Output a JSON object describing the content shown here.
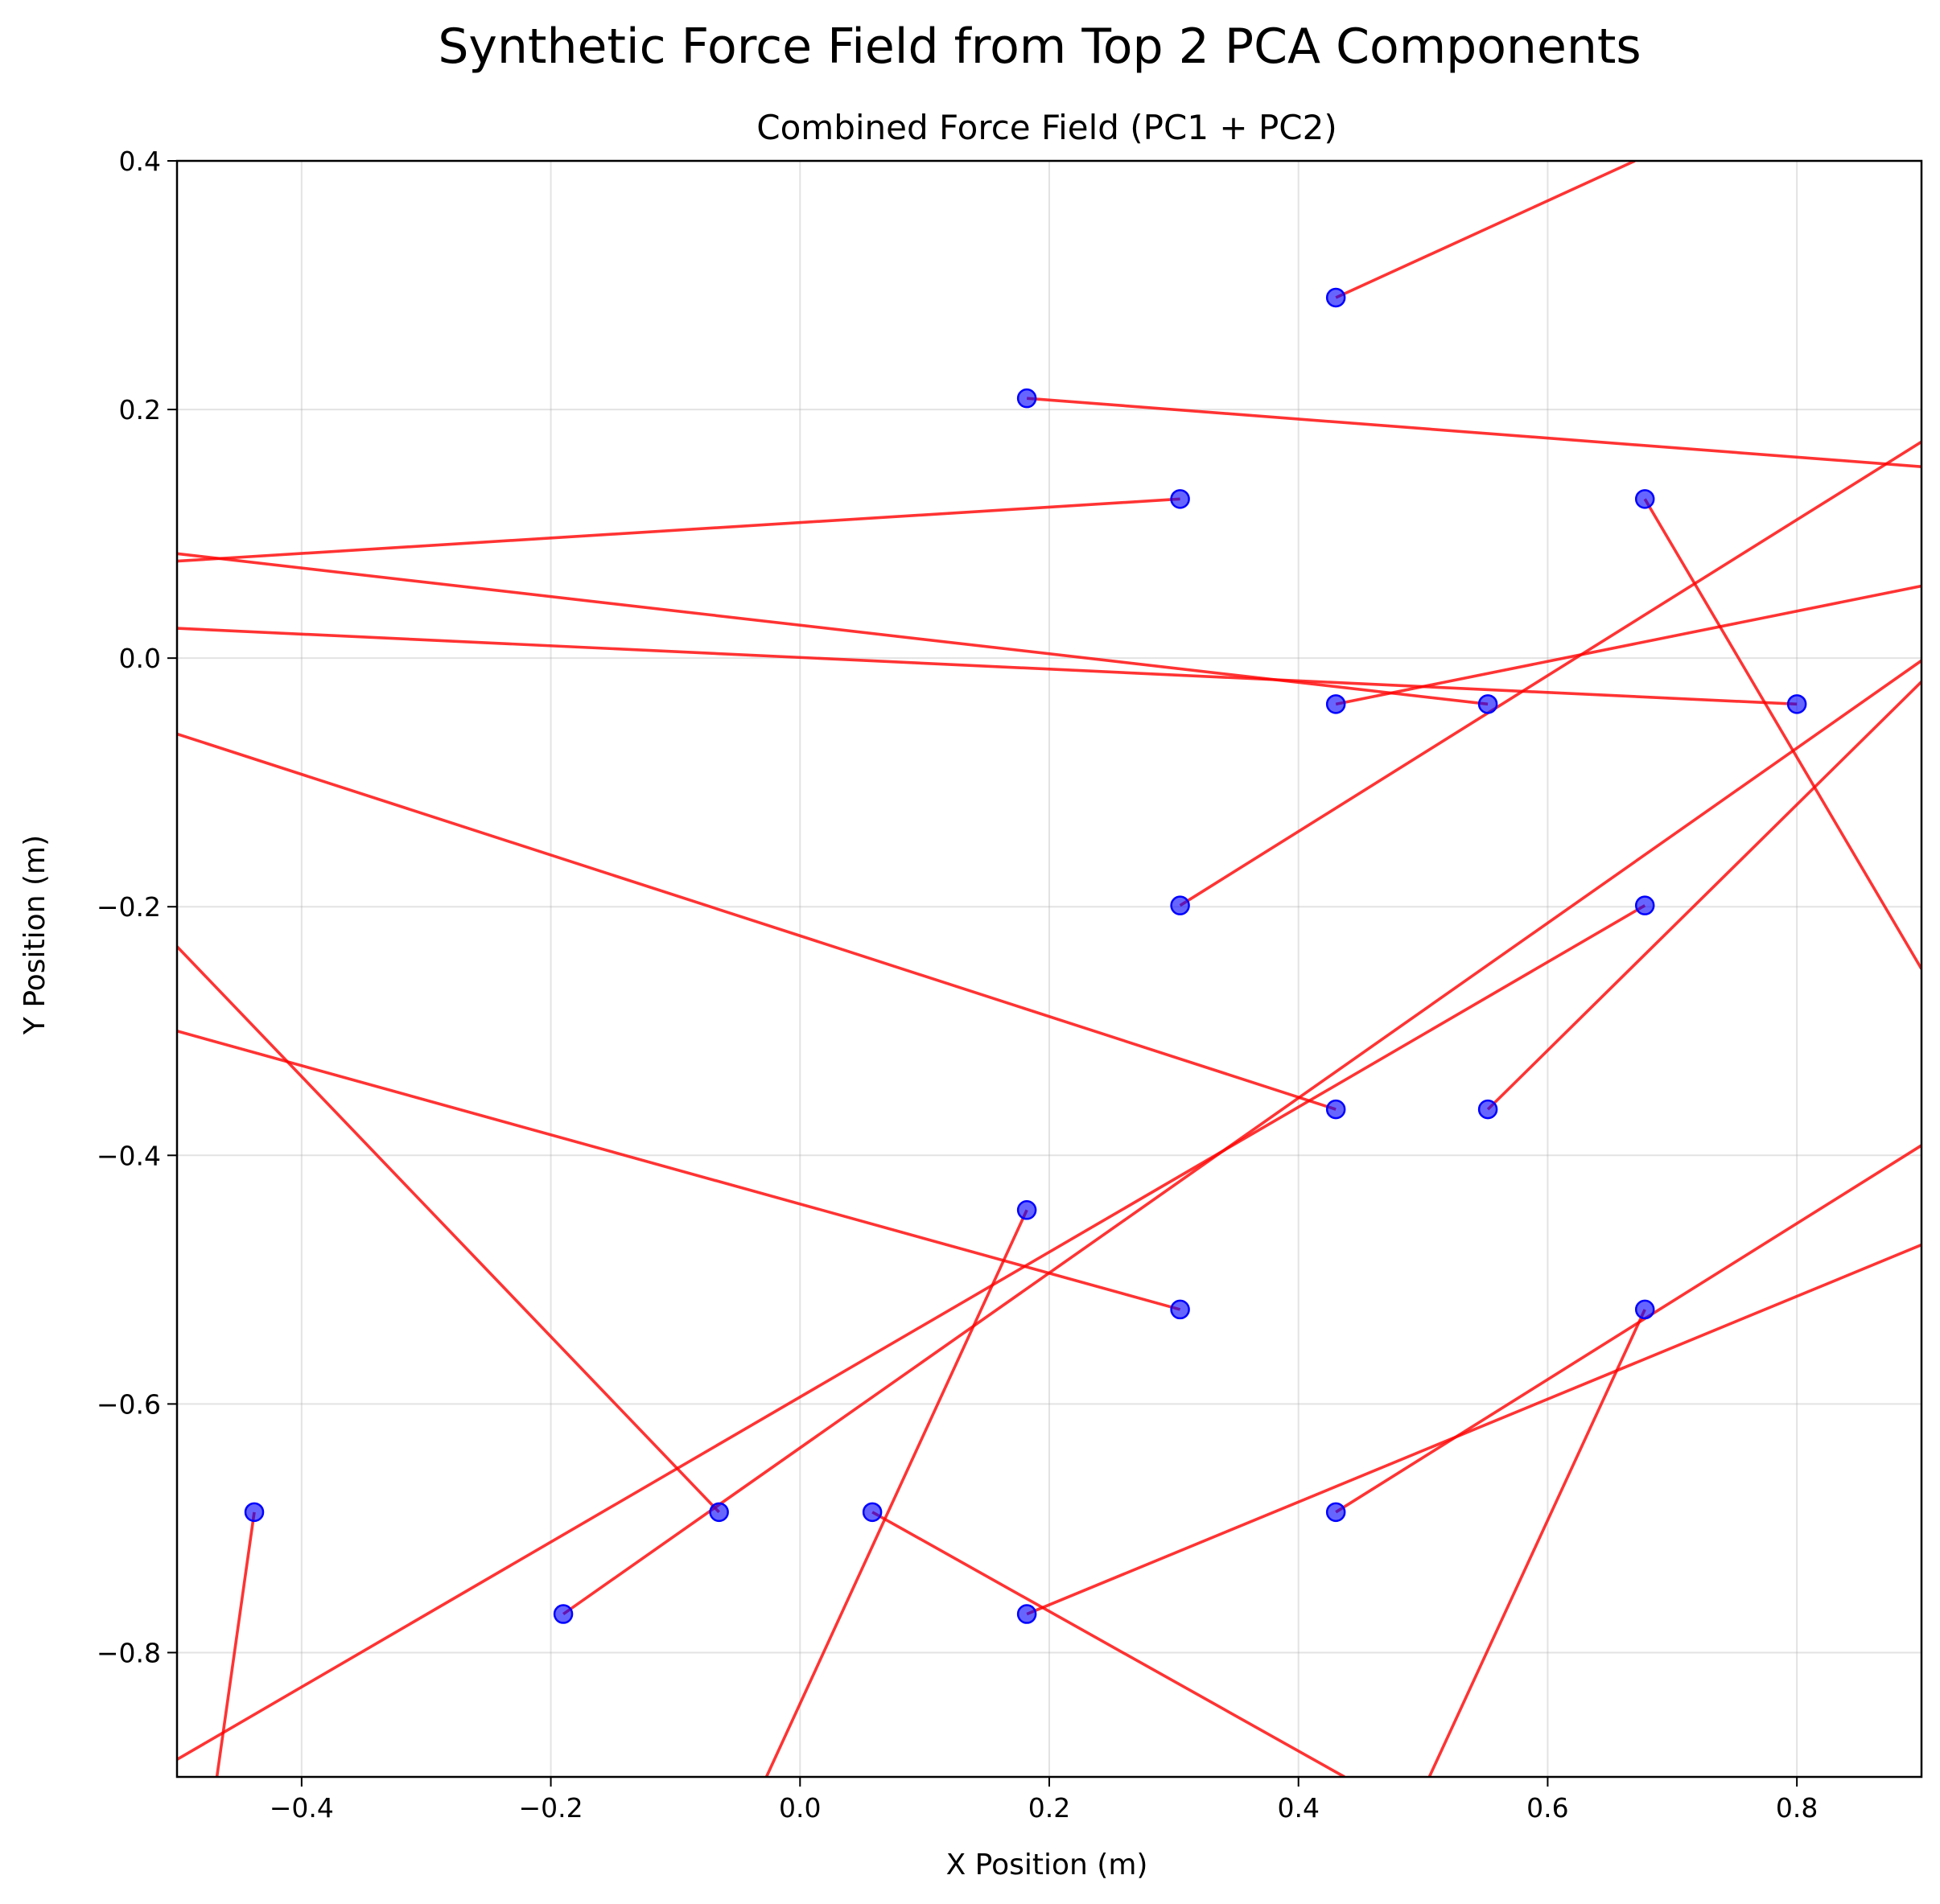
{
  "chart_data": {
    "type": "quiver",
    "suptitle": "Synthetic Force Field from Top 2 PCA Components",
    "title": "Combined Force Field (PC1 + PC2)",
    "xlabel": "X Position (m)",
    "ylabel": "Y Position (m)",
    "xlim": [
      -0.5,
      0.9
    ],
    "ylim": [
      -0.9,
      0.4
    ],
    "xticks": [
      -0.4,
      -0.2,
      0.0,
      0.2,
      0.4,
      0.6,
      0.8
    ],
    "xtick_labels": [
      "−0.4",
      "−0.2",
      "0.0",
      "0.2",
      "0.4",
      "0.6",
      "0.8"
    ],
    "yticks": [
      -0.8,
      -0.6,
      -0.4,
      -0.2,
      0.0,
      0.2,
      0.4
    ],
    "ytick_labels": [
      "−0.8",
      "−0.6",
      "−0.4",
      "−0.2",
      "0.0",
      "0.2",
      "0.4"
    ],
    "grid": true,
    "point_color": "#0000ff",
    "vector_color": "#ff0000",
    "vectors": [
      {
        "x": 0.43,
        "y": 0.29,
        "x2": 0.67,
        "y2": 0.4
      },
      {
        "x": 0.182,
        "y": 0.209,
        "x2": 0.9,
        "y2": 0.154
      },
      {
        "x": 0.305,
        "y": 0.128,
        "x2": -0.5,
        "y2": 0.078
      },
      {
        "x": 0.678,
        "y": 0.128,
        "x2": 0.9,
        "y2": -0.25
      },
      {
        "x": 0.43,
        "y": -0.037,
        "x2": 0.9,
        "y2": 0.058
      },
      {
        "x": 0.552,
        "y": -0.037,
        "x2": -0.5,
        "y2": 0.084
      },
      {
        "x": 0.8,
        "y": -0.037,
        "x2": -0.5,
        "y2": 0.024
      },
      {
        "x": 0.305,
        "y": -0.199,
        "x2": 0.9,
        "y2": 0.174
      },
      {
        "x": 0.678,
        "y": -0.199,
        "x2": -0.5,
        "y2": -0.886
      },
      {
        "x": 0.43,
        "y": -0.363,
        "x2": -0.5,
        "y2": -0.061
      },
      {
        "x": 0.552,
        "y": -0.363,
        "x2": 0.9,
        "y2": -0.019
      },
      {
        "x": 0.182,
        "y": -0.444,
        "x2": -0.027,
        "y2": -0.9
      },
      {
        "x": 0.305,
        "y": -0.524,
        "x2": -0.5,
        "y2": -0.3
      },
      {
        "x": 0.678,
        "y": -0.524,
        "x2": 0.505,
        "y2": -0.9
      },
      {
        "x": -0.438,
        "y": -0.687,
        "x2": -0.468,
        "y2": -0.9
      },
      {
        "x": -0.065,
        "y": -0.687,
        "x2": -0.5,
        "y2": -0.232
      },
      {
        "x": 0.058,
        "y": -0.687,
        "x2": 0.437,
        "y2": -0.9
      },
      {
        "x": 0.43,
        "y": -0.687,
        "x2": 0.9,
        "y2": -0.392
      },
      {
        "x": -0.19,
        "y": -0.769,
        "x2": 0.9,
        "y2": -0.002
      },
      {
        "x": 0.182,
        "y": -0.769,
        "x2": 0.9,
        "y2": -0.472
      }
    ]
  }
}
